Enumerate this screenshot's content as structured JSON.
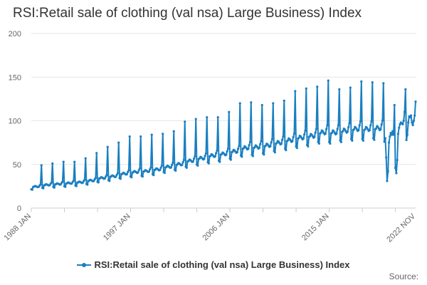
{
  "chart_data": {
    "type": "line",
    "title": "RSI:Retail sale of clothing (val nsa) Large Business) Index",
    "xlabel": "",
    "ylabel": "",
    "ylim": [
      0,
      200
    ],
    "yticks": [
      0,
      50,
      100,
      150,
      200
    ],
    "x_range": [
      "1988 JAN",
      "2022 NOV"
    ],
    "xtick_labels": [
      "1988 JAN",
      "1997 JAN",
      "2006 JAN",
      "2015 JAN",
      "2022 NOV"
    ],
    "grid": "horizontal",
    "legend_position": "bottom",
    "series": [
      {
        "name": "RSI:Retail sale of clothing (val nsa) Large Business) Index",
        "color": "#1a7fc1",
        "marker": "circle",
        "annual_points": [
          {
            "year": 1988,
            "base": 25,
            "december": 49
          },
          {
            "year": 1989,
            "base": 27,
            "december": 51
          },
          {
            "year": 1990,
            "base": 28,
            "december": 53
          },
          {
            "year": 1991,
            "base": 29,
            "december": 53
          },
          {
            "year": 1992,
            "base": 30,
            "december": 57
          },
          {
            "year": 1993,
            "base": 32,
            "december": 63
          },
          {
            "year": 1994,
            "base": 35,
            "december": 70
          },
          {
            "year": 1995,
            "base": 37,
            "december": 75
          },
          {
            "year": 1996,
            "base": 40,
            "december": 82
          },
          {
            "year": 1997,
            "base": 42,
            "december": 82
          },
          {
            "year": 1998,
            "base": 43,
            "december": 84
          },
          {
            "year": 1999,
            "base": 45,
            "december": 85
          },
          {
            "year": 2000,
            "base": 48,
            "december": 88
          },
          {
            "year": 2001,
            "base": 51,
            "december": 99
          },
          {
            "year": 2002,
            "base": 55,
            "december": 102
          },
          {
            "year": 2003,
            "base": 58,
            "december": 104
          },
          {
            "year": 2004,
            "base": 61,
            "december": 104
          },
          {
            "year": 2005,
            "base": 63,
            "december": 110
          },
          {
            "year": 2006,
            "base": 66,
            "december": 120
          },
          {
            "year": 2007,
            "base": 70,
            "december": 121
          },
          {
            "year": 2008,
            "base": 71,
            "december": 118
          },
          {
            "year": 2009,
            "base": 73,
            "december": 120
          },
          {
            "year": 2010,
            "base": 76,
            "december": 123
          },
          {
            "year": 2011,
            "base": 79,
            "december": 134
          },
          {
            "year": 2012,
            "base": 82,
            "december": 137
          },
          {
            "year": 2013,
            "base": 84,
            "december": 139
          },
          {
            "year": 2014,
            "base": 88,
            "december": 146
          },
          {
            "year": 2015,
            "base": 88,
            "december": 136
          },
          {
            "year": 2016,
            "base": 90,
            "december": 138
          },
          {
            "year": 2017,
            "base": 92,
            "december": 145
          },
          {
            "year": 2018,
            "base": 92,
            "december": 144
          },
          {
            "year": 2019,
            "base": 93,
            "december": 143
          }
        ],
        "recent_monthly": [
          {
            "date": "2020 JAN",
            "value": 76
          },
          {
            "date": "2020 FEB",
            "value": 80
          },
          {
            "date": "2020 MAR",
            "value": 58
          },
          {
            "date": "2020 APR",
            "value": 31
          },
          {
            "date": "2020 MAY",
            "value": 42
          },
          {
            "date": "2020 JUN",
            "value": 75
          },
          {
            "date": "2020 JUL",
            "value": 82
          },
          {
            "date": "2020 AUG",
            "value": 86
          },
          {
            "date": "2020 SEP",
            "value": 84
          },
          {
            "date": "2020 OCT",
            "value": 88
          },
          {
            "date": "2020 NOV",
            "value": 84
          },
          {
            "date": "2020 DEC",
            "value": 118
          },
          {
            "date": "2021 JAN",
            "value": 46
          },
          {
            "date": "2021 FEB",
            "value": 40
          },
          {
            "date": "2021 MAR",
            "value": 55
          },
          {
            "date": "2021 APR",
            "value": 85
          },
          {
            "date": "2021 MAY",
            "value": 92
          },
          {
            "date": "2021 JUN",
            "value": 96
          },
          {
            "date": "2021 JUL",
            "value": 98
          },
          {
            "date": "2021 AUG",
            "value": 97
          },
          {
            "date": "2021 SEP",
            "value": 96
          },
          {
            "date": "2021 OCT",
            "value": 100
          },
          {
            "date": "2021 NOV",
            "value": 110
          },
          {
            "date": "2021 DEC",
            "value": 136
          },
          {
            "date": "2022 JAN",
            "value": 78
          },
          {
            "date": "2022 FEB",
            "value": 84
          },
          {
            "date": "2022 MAR",
            "value": 98
          },
          {
            "date": "2022 APR",
            "value": 105
          },
          {
            "date": "2022 MAY",
            "value": 104
          },
          {
            "date": "2022 JUN",
            "value": 106
          },
          {
            "date": "2022 JUL",
            "value": 98
          },
          {
            "date": "2022 AUG",
            "value": 95
          },
          {
            "date": "2022 SEP",
            "value": 100
          },
          {
            "date": "2022 OCT",
            "value": 106
          },
          {
            "date": "2022 NOV",
            "value": 122
          }
        ]
      }
    ]
  },
  "legend": {
    "label": "RSI:Retail sale of clothing (val nsa) Large Business) Index"
  },
  "source_label": "Source:"
}
